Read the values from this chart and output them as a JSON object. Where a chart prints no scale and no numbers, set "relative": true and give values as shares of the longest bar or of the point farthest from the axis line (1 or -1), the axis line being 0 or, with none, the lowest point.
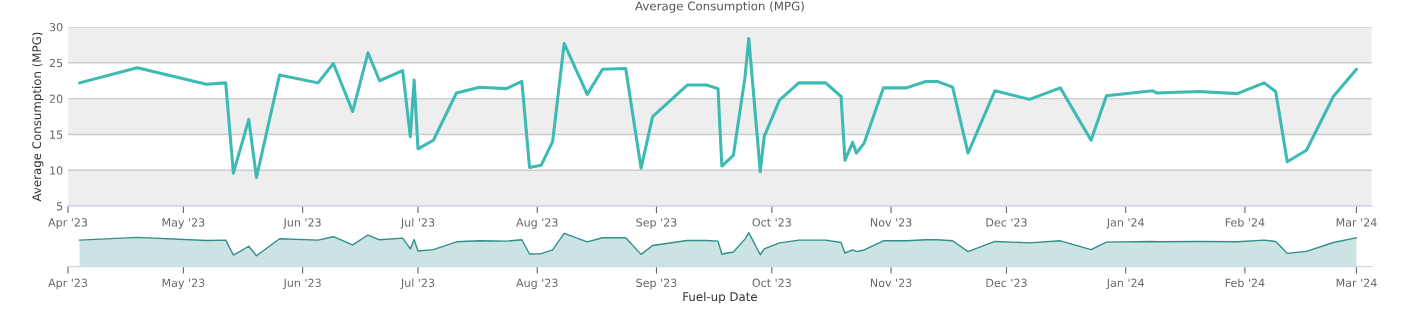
{
  "chart_data": [
    {
      "type": "line",
      "title": "Average Consumption (MPG)",
      "ylabel": "Average Consumption (MPG)",
      "x": [
        "2023-04-04",
        "2023-04-19",
        "2023-05-07",
        "2023-05-12",
        "2023-05-14",
        "2023-05-18",
        "2023-05-20",
        "2023-05-26",
        "2023-06-05",
        "2023-06-09",
        "2023-06-14",
        "2023-06-18",
        "2023-06-21",
        "2023-06-27",
        "2023-06-29",
        "2023-06-30",
        "2023-07-01",
        "2023-07-05",
        "2023-07-11",
        "2023-07-17",
        "2023-07-24",
        "2023-07-28",
        "2023-07-30",
        "2023-08-02",
        "2023-08-05",
        "2023-08-08",
        "2023-08-14",
        "2023-08-18",
        "2023-08-24",
        "2023-08-28",
        "2023-08-31",
        "2023-09-09",
        "2023-09-14",
        "2023-09-17",
        "2023-09-18",
        "2023-09-21",
        "2023-09-24",
        "2023-09-25",
        "2023-09-28",
        "2023-09-29",
        "2023-10-03",
        "2023-10-08",
        "2023-10-15",
        "2023-10-19",
        "2023-10-20",
        "2023-10-22",
        "2023-10-23",
        "2023-10-25",
        "2023-10-30",
        "2023-11-05",
        "2023-11-10",
        "2023-11-13",
        "2023-11-17",
        "2023-11-21",
        "2023-11-28",
        "2023-12-07",
        "2023-12-15",
        "2023-12-23",
        "2023-12-27",
        "2024-01-08",
        "2024-01-09",
        "2024-01-20",
        "2024-01-30",
        "2024-02-06",
        "2024-02-09",
        "2024-02-12",
        "2024-02-17",
        "2024-02-24",
        "2024-03-01"
      ],
      "series": [
        {
          "color": "#3dbab3",
          "values": [
            22.2,
            24.3,
            22.0,
            22.2,
            9.6,
            17.1,
            9.0,
            23.3,
            22.2,
            24.9,
            18.2,
            26.4,
            22.5,
            23.9,
            14.7,
            22.6,
            13.0,
            14.2,
            20.8,
            21.6,
            21.4,
            22.4,
            10.4,
            10.7,
            14.0,
            27.7,
            20.6,
            24.1,
            24.2,
            10.3,
            17.5,
            21.9,
            21.9,
            21.4,
            10.6,
            12.1,
            22.9,
            28.4,
            9.8,
            14.7,
            19.8,
            22.2,
            22.2,
            20.3,
            11.4,
            13.9,
            12.4,
            13.8,
            21.5,
            21.5,
            22.4,
            22.4,
            21.6,
            12.4,
            21.1,
            19.9,
            21.5,
            14.2,
            20.4,
            21.1,
            20.8,
            21.0,
            20.7,
            22.2,
            21.0,
            11.2,
            12.8,
            20.3,
            24.1
          ]
        }
      ],
      "xlim": [
        "2023-04-01",
        "2024-03-05"
      ],
      "xticks": [
        {
          "value": "2023-04-01",
          "label": "Apr '23"
        },
        {
          "value": "2023-05-01",
          "label": "May '23"
        },
        {
          "value": "2023-06-01",
          "label": "Jun '23"
        },
        {
          "value": "2023-07-01",
          "label": "Jul '23"
        },
        {
          "value": "2023-08-01",
          "label": "Aug '23"
        },
        {
          "value": "2023-09-01",
          "label": "Sep '23"
        },
        {
          "value": "2023-10-01",
          "label": "Oct '23"
        },
        {
          "value": "2023-11-01",
          "label": "Nov '23"
        },
        {
          "value": "2023-12-01",
          "label": "Dec '23"
        },
        {
          "value": "2024-01-01",
          "label": "Jan '24"
        },
        {
          "value": "2024-02-01",
          "label": "Feb '24"
        },
        {
          "value": "2024-03-01",
          "label": "Mar '24"
        }
      ],
      "ylim": [
        5,
        30
      ],
      "yticks": [
        5,
        10,
        15,
        20,
        25,
        30
      ],
      "grid": "y",
      "legend": false,
      "bands": [
        {
          "axis": "y",
          "from": 5,
          "to": 10,
          "color": "#eeeeee"
        },
        {
          "axis": "y",
          "from": 15,
          "to": 20,
          "color": "#eeeeee"
        },
        {
          "axis": "y",
          "from": 25,
          "to": 30,
          "color": "#eeeeee"
        }
      ]
    },
    {
      "type": "area",
      "xlabel": "Fuel-up Date",
      "relative": true,
      "tick_labels": "x",
      "x": [
        "2023-04-04",
        "2023-04-19",
        "2023-05-07",
        "2023-05-12",
        "2023-05-14",
        "2023-05-18",
        "2023-05-20",
        "2023-05-26",
        "2023-06-05",
        "2023-06-09",
        "2023-06-14",
        "2023-06-18",
        "2023-06-21",
        "2023-06-27",
        "2023-06-29",
        "2023-06-30",
        "2023-07-01",
        "2023-07-05",
        "2023-07-11",
        "2023-07-17",
        "2023-07-24",
        "2023-07-28",
        "2023-07-30",
        "2023-08-02",
        "2023-08-05",
        "2023-08-08",
        "2023-08-14",
        "2023-08-18",
        "2023-08-24",
        "2023-08-28",
        "2023-08-31",
        "2023-09-09",
        "2023-09-14",
        "2023-09-17",
        "2023-09-18",
        "2023-09-21",
        "2023-09-24",
        "2023-09-25",
        "2023-09-28",
        "2023-09-29",
        "2023-10-03",
        "2023-10-08",
        "2023-10-15",
        "2023-10-19",
        "2023-10-20",
        "2023-10-22",
        "2023-10-23",
        "2023-10-25",
        "2023-10-30",
        "2023-11-05",
        "2023-11-10",
        "2023-11-13",
        "2023-11-17",
        "2023-11-21",
        "2023-11-28",
        "2023-12-07",
        "2023-12-15",
        "2023-12-23",
        "2023-12-27",
        "2024-01-08",
        "2024-01-09",
        "2024-01-20",
        "2024-01-30",
        "2024-02-06",
        "2024-02-09",
        "2024-02-12",
        "2024-02-17",
        "2024-02-24",
        "2024-03-01"
      ],
      "series": [
        {
          "color": "#2f8f8a",
          "values": [
            0.78,
            0.86,
            0.77,
            0.78,
            0.34,
            0.6,
            0.32,
            0.82,
            0.78,
            0.88,
            0.64,
            0.93,
            0.79,
            0.84,
            0.52,
            0.8,
            0.46,
            0.5,
            0.73,
            0.76,
            0.75,
            0.79,
            0.37,
            0.38,
            0.49,
            0.98,
            0.73,
            0.85,
            0.85,
            0.36,
            0.62,
            0.77,
            0.77,
            0.75,
            0.37,
            0.43,
            0.81,
            1.0,
            0.35,
            0.52,
            0.7,
            0.78,
            0.78,
            0.71,
            0.4,
            0.49,
            0.44,
            0.49,
            0.76,
            0.76,
            0.79,
            0.79,
            0.76,
            0.44,
            0.74,
            0.7,
            0.76,
            0.5,
            0.72,
            0.74,
            0.73,
            0.74,
            0.73,
            0.78,
            0.74,
            0.39,
            0.45,
            0.71,
            0.85
          ]
        }
      ],
      "xlim": [
        "2023-04-01",
        "2024-03-05"
      ],
      "xticks": [
        {
          "value": "2023-04-01",
          "label": "Apr '23"
        },
        {
          "value": "2023-05-01",
          "label": "May '23"
        },
        {
          "value": "2023-06-01",
          "label": "Jun '23"
        },
        {
          "value": "2023-07-01",
          "label": "Jul '23"
        },
        {
          "value": "2023-08-01",
          "label": "Aug '23"
        },
        {
          "value": "2023-09-01",
          "label": "Sep '23"
        },
        {
          "value": "2023-10-01",
          "label": "Oct '23"
        },
        {
          "value": "2023-11-01",
          "label": "Nov '23"
        },
        {
          "value": "2023-12-01",
          "label": "Dec '23"
        },
        {
          "value": "2024-01-01",
          "label": "Jan '24"
        },
        {
          "value": "2024-02-01",
          "label": "Feb '24"
        },
        {
          "value": "2024-03-01",
          "label": "Mar '24"
        }
      ],
      "grid": false,
      "legend": false
    }
  ]
}
